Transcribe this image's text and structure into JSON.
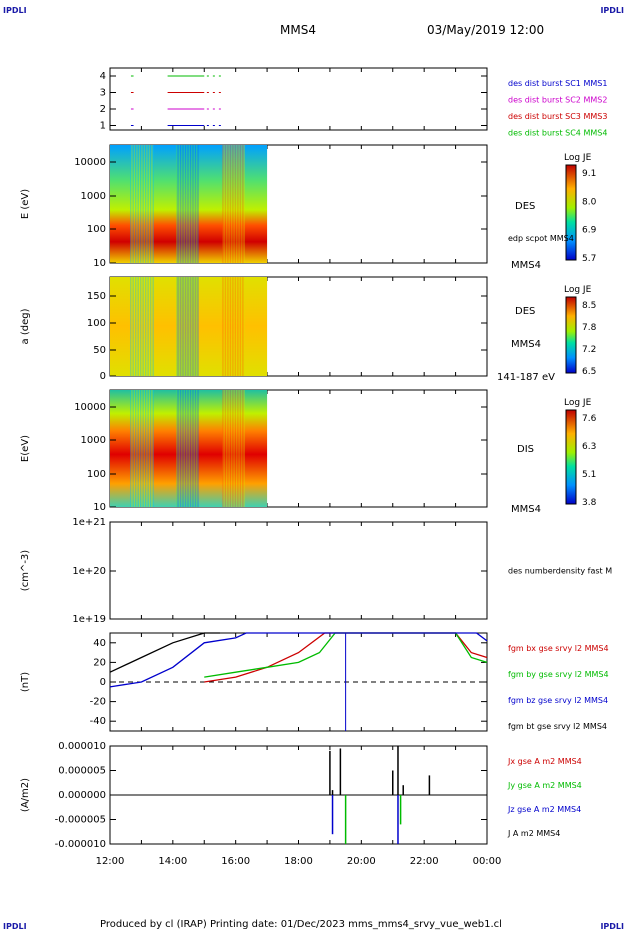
{
  "corners": {
    "tl": "IPDLI",
    "tr": "IPDLI",
    "bl": "IPDLI",
    "br": "IPDLI"
  },
  "header": {
    "spacecraft": "MMS4",
    "datetime": "03/May/2019 12:00"
  },
  "footer": "Produced by cl (IRAP)   Printing date: 01/Dec/2023   mms_mms4_srvy_vue_web1.cl",
  "colors": {
    "mms1": "#0000cc",
    "mms2": "#cc00cc",
    "mms3": "#cc0000",
    "mms4": "#00bb00"
  },
  "chart_data": [
    {
      "type": "line",
      "id": "availability",
      "ylabel": "",
      "yticks": [
        "1",
        "2",
        "3",
        "4"
      ],
      "legend": [
        {
          "label": "des dist burst SC1 MMS1",
          "color": "#0000cc"
        },
        {
          "label": "des dist burst SC2 MMS2",
          "color": "#cc00cc"
        },
        {
          "label": "des dist burst SC3 MMS3",
          "color": "#cc0000"
        },
        {
          "label": "des dist burst SC4 MMS4",
          "color": "#00bb00"
        }
      ],
      "series": [
        {
          "level": 4,
          "color": "#00bb00",
          "segments": [
            [
              "12:40",
              "12:45"
            ],
            [
              "13:50",
              "15:00"
            ],
            [
              "15:05",
              "15:35"
            ]
          ]
        },
        {
          "level": 3,
          "color": "#cc0000",
          "segments": [
            [
              "12:40",
              "12:45"
            ],
            [
              "13:50",
              "15:00"
            ],
            [
              "15:05",
              "15:35"
            ]
          ]
        },
        {
          "level": 2,
          "color": "#cc00cc",
          "segments": [
            [
              "12:40",
              "12:45"
            ],
            [
              "13:50",
              "15:00"
            ],
            [
              "15:05",
              "15:35"
            ]
          ]
        },
        {
          "level": 1,
          "color": "#0000cc",
          "segments": [
            [
              "12:40",
              "12:45"
            ],
            [
              "13:50",
              "15:00"
            ],
            [
              "15:05",
              "15:35"
            ]
          ]
        }
      ]
    },
    {
      "type": "heatmap",
      "id": "des-energy",
      "ylabel": "E (eV)",
      "scale": "log",
      "ylim": [
        10,
        30000
      ],
      "yticks": [
        "10",
        "100",
        "1000",
        "10000"
      ],
      "data_end": "17:00",
      "right_labels": [
        "DES",
        "edp scpot MMS4",
        "MMS4"
      ],
      "colorbar": {
        "title": "Log JE",
        "ticks": [
          "9.1",
          "8.0",
          "6.9",
          "5.7"
        ]
      }
    },
    {
      "type": "heatmap",
      "id": "des-pitch",
      "ylabel": "a (deg)",
      "ylim": [
        0,
        180
      ],
      "yticks": [
        "0",
        "50",
        "100",
        "150"
      ],
      "data_end": "17:00",
      "right_labels": [
        "DES",
        "MMS4",
        "141-187 eV"
      ],
      "colorbar": {
        "title": "Log JE",
        "ticks": [
          "8.5",
          "7.8",
          "7.2",
          "6.5"
        ]
      }
    },
    {
      "type": "heatmap",
      "id": "dis-energy",
      "ylabel": "E(eV)",
      "scale": "log",
      "ylim": [
        10,
        30000
      ],
      "yticks": [
        "10",
        "100",
        "1000",
        "10000"
      ],
      "data_end": "17:00",
      "right_labels": [
        "DIS",
        "MMS4"
      ],
      "colorbar": {
        "title": "Log JE",
        "ticks": [
          "7.6",
          "6.3",
          "5.1",
          "3.8"
        ]
      }
    },
    {
      "type": "line",
      "id": "density",
      "ylabel": "(cm^-3)",
      "scale": "log",
      "yticks": [
        "1e+19",
        "1e+20",
        "1e+21"
      ],
      "legend": [
        {
          "label": "des numberdensity fast M",
          "color": "#000000"
        }
      ],
      "series": []
    },
    {
      "type": "line",
      "id": "fgm",
      "ylabel": "(nT)",
      "ylim": [
        -50,
        50
      ],
      "yticks": [
        "-40",
        "-20",
        "0",
        "20",
        "40"
      ],
      "legend": [
        {
          "label": "fgm bx gse srvy l2 MMS4",
          "color": "#cc0000"
        },
        {
          "label": "fgm by gse srvy l2 MMS4",
          "color": "#00bb00"
        },
        {
          "label": "fgm bz gse srvy l2 MMS4",
          "color": "#0000cc"
        },
        {
          "label": "fgm bt gse srvy l2 MMS4",
          "color": "#000000"
        }
      ],
      "series": [
        {
          "name": "bx",
          "color": "#cc0000",
          "x": [
            "15:00",
            "16:00",
            "17:00",
            "18:00",
            "18:50",
            "23:00",
            "23:30",
            "24:00"
          ],
          "values": [
            0,
            5,
            15,
            30,
            50,
            50,
            30,
            25
          ]
        },
        {
          "name": "by",
          "color": "#00bb00",
          "x": [
            "15:00",
            "16:00",
            "17:00",
            "18:00",
            "18:40",
            "19:10",
            "23:00",
            "23:30",
            "24:00"
          ],
          "values": [
            5,
            10,
            15,
            20,
            30,
            50,
            50,
            25,
            20
          ]
        },
        {
          "name": "bz",
          "color": "#0000cc",
          "x": [
            "12:00",
            "13:00",
            "14:00",
            "15:00",
            "16:00",
            "16:20",
            "23:40",
            "24:00"
          ],
          "values": [
            -5,
            0,
            15,
            40,
            45,
            50,
            50,
            42
          ]
        },
        {
          "name": "bt",
          "color": "#000000",
          "x": [
            "12:00",
            "13:00",
            "14:00",
            "15:00",
            "15:30"
          ],
          "values": [
            10,
            25,
            40,
            50,
            50
          ]
        }
      ]
    },
    {
      "type": "line",
      "id": "current",
      "ylabel": "(A/m2)",
      "ylim": [
        -1e-05,
        1e-05
      ],
      "yticks": [
        "-0.000010",
        "-0.000005",
        "0.000000",
        "0.000005",
        "0.000010"
      ],
      "legend": [
        {
          "label": "Jx gse A m2 MMS4",
          "color": "#cc0000"
        },
        {
          "label": "Jy gse A m2 MMS4",
          "color": "#00bb00"
        },
        {
          "label": "Jz gse A m2 MMS4",
          "color": "#0000cc"
        },
        {
          "label": "J A m2 MMS4",
          "color": "#000000"
        }
      ],
      "series": [
        {
          "name": "J",
          "color": "#000000",
          "x": [
            "19:00",
            "19:05",
            "19:20",
            "21:00",
            "21:10",
            "21:20",
            "22:10"
          ],
          "values": [
            9e-06,
            1e-06,
            9.5e-06,
            5e-06,
            1e-05,
            2e-06,
            4e-06
          ]
        },
        {
          "name": "Jz",
          "color": "#0000cc",
          "x": [
            "19:05",
            "21:10"
          ],
          "values": [
            -8e-06,
            -1e-05
          ]
        },
        {
          "name": "Jy",
          "color": "#00bb00",
          "x": [
            "19:30",
            "21:15"
          ],
          "values": [
            -1e-05,
            -6e-06
          ]
        }
      ]
    }
  ],
  "xaxis": {
    "ticks": [
      "12:00",
      "14:00",
      "16:00",
      "18:00",
      "20:00",
      "22:00",
      "00:00"
    ]
  }
}
